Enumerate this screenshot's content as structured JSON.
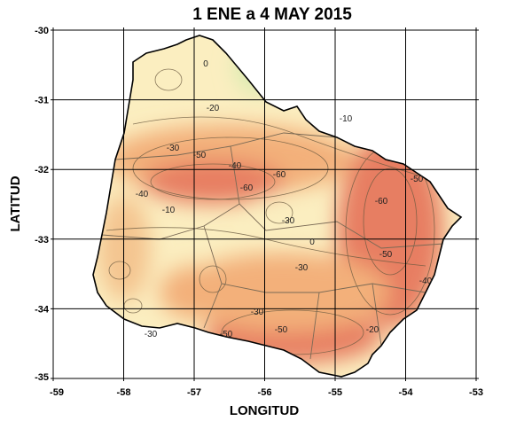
{
  "title": "1 ENE a 4 MAY 2015",
  "xlabel": "LONGITUD",
  "ylabel": "LATITUD",
  "x_ticks": [
    "-59",
    "-58",
    "-57",
    "-56",
    "-55",
    "-54",
    "-53"
  ],
  "y_ticks": [
    "-30",
    "-31",
    "-32",
    "-33",
    "-34",
    "-35"
  ],
  "contour_labels": [
    "0",
    "-20",
    "-10",
    "-30",
    "-50",
    "-40",
    "-40",
    "-60",
    "-60",
    "-50",
    "-30",
    "-10",
    "-30",
    "-60",
    "-50",
    "-40",
    "-30",
    "-50",
    "-30",
    "-50",
    "-20",
    "0"
  ],
  "colors": {
    "low": "#e0675a",
    "mid": "#f3b07a",
    "high": "#fbeec0",
    "positive": "#d8ebb0",
    "border": "#000000"
  }
}
